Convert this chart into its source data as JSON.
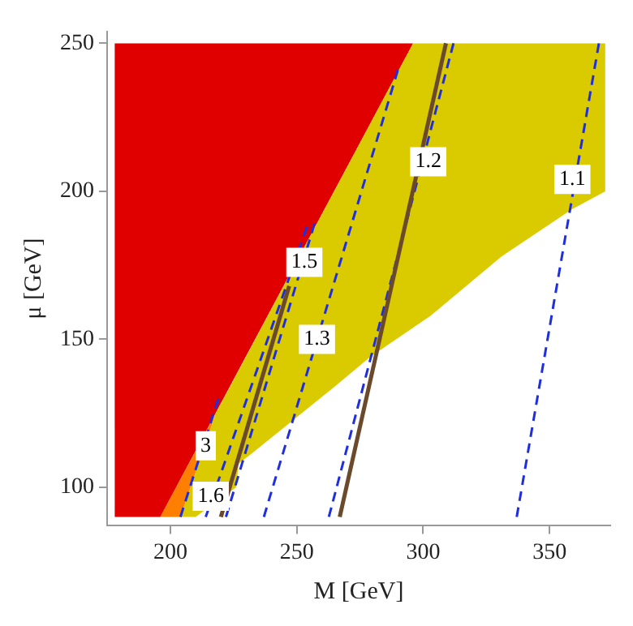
{
  "chart_data": {
    "type": "area",
    "xlabel": "M [GeV]",
    "ylabel": "μ [GeV]",
    "xlim": [
      175,
      374
    ],
    "ylim": [
      87,
      254
    ],
    "xticks": [
      200,
      250,
      300,
      350
    ],
    "yticks": [
      100,
      150,
      200,
      250
    ],
    "grid": false,
    "legend": false,
    "series": [
      {
        "color": "#d9cb00",
        "x": [
          204,
          210,
          226,
          227,
          233,
          249,
          265,
          279,
          303,
          331,
          359,
          372,
          372,
          296,
          218
        ],
        "values": [
          90,
          90,
          100,
          108,
          112,
          123,
          134,
          144,
          158,
          178,
          194,
          200,
          250,
          250,
          125
        ]
      },
      {
        "color": "#e00000",
        "x": [
          178,
          178,
          296,
          196
        ],
        "values": [
          90,
          250,
          250,
          90
        ]
      },
      {
        "color": "#ff8000",
        "x": [
          196,
          204,
          218
        ],
        "values": [
          90,
          90,
          125
        ]
      },
      {
        "type": "line",
        "color": "#6b4a2b",
        "x": [
          267,
          309
        ],
        "values": [
          90,
          250
        ]
      },
      {
        "type": "line",
        "color": "#6b4a2b",
        "x": [
          220,
          247
        ],
        "values": [
          90,
          168
        ]
      },
      {
        "type": "line",
        "line_style": "dashed",
        "color": "#1f2fe0",
        "x": [
          337,
          369.5
        ],
        "values": [
          90,
          250
        ]
      },
      {
        "type": "line",
        "line_style": "dashed",
        "color": "#1f2fe0",
        "x": [
          262.7,
          312
        ],
        "values": [
          90,
          250
        ]
      },
      {
        "type": "line",
        "line_style": "dashed",
        "color": "#1f2fe0",
        "x": [
          237,
          290
        ],
        "values": [
          90,
          241
        ]
      },
      {
        "type": "line",
        "line_style": "dashed",
        "color": "#1f2fe0",
        "x": [
          222,
          257
        ],
        "values": [
          90,
          189
        ]
      },
      {
        "type": "line",
        "line_style": "dashed",
        "color": "#1f2fe0",
        "x": [
          214,
          254
        ],
        "values": [
          90,
          188
        ]
      },
      {
        "type": "line",
        "line_style": "dashed",
        "color": "#1f2fe0",
        "x": [
          204,
          219
        ],
        "values": [
          90,
          130
        ]
      }
    ],
    "annotations": [
      {
        "text": "1.1",
        "x": 359,
        "y": 204
      },
      {
        "text": "1.2",
        "x": 302,
        "y": 210
      },
      {
        "text": "1.3",
        "x": 258,
        "y": 150
      },
      {
        "text": "1.5",
        "x": 253,
        "y": 176
      },
      {
        "text": "1.6",
        "x": 216,
        "y": 97
      },
      {
        "text": "3",
        "x": 214,
        "y": 114
      }
    ]
  }
}
